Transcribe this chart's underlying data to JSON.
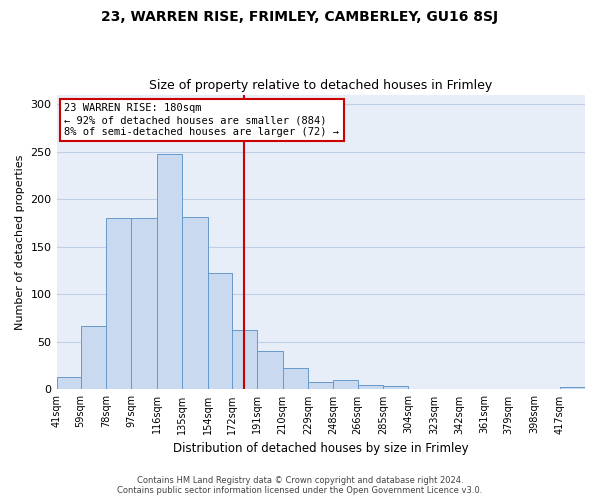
{
  "title1": "23, WARREN RISE, FRIMLEY, CAMBERLEY, GU16 8SJ",
  "title2": "Size of property relative to detached houses in Frimley",
  "xlabel": "Distribution of detached houses by size in Frimley",
  "ylabel": "Number of detached properties",
  "bar_labels": [
    "41sqm",
    "59sqm",
    "78sqm",
    "97sqm",
    "116sqm",
    "135sqm",
    "154sqm",
    "172sqm",
    "191sqm",
    "210sqm",
    "229sqm",
    "248sqm",
    "266sqm",
    "285sqm",
    "304sqm",
    "323sqm",
    "342sqm",
    "361sqm",
    "379sqm",
    "398sqm",
    "417sqm"
  ],
  "bar_values": [
    13,
    67,
    180,
    180,
    247,
    181,
    122,
    62,
    40,
    23,
    8,
    10,
    5,
    4,
    0,
    0,
    0,
    0,
    0,
    0,
    3
  ],
  "bar_color": "#c8d9f0",
  "bar_edge_color": "#6699cc",
  "ylim": [
    0,
    310
  ],
  "yticks": [
    0,
    50,
    100,
    150,
    200,
    250,
    300
  ],
  "grid_color": "#c0cfe8",
  "bg_color": "#e8eef8",
  "property_line_x": 181,
  "annotation_line_color": "#cc0000",
  "annotation_box_edge": "#cc0000",
  "annotation_text_line1": "23 WARREN RISE: 180sqm",
  "annotation_text_line2": "← 92% of detached houses are smaller (884)",
  "annotation_text_line3": "8% of semi-detached houses are larger (72) →",
  "footer1": "Contains HM Land Registry data © Crown copyright and database right 2024.",
  "footer2": "Contains public sector information licensed under the Open Government Licence v3.0.",
  "label_values": [
    41,
    59,
    78,
    97,
    116,
    135,
    154,
    172,
    191,
    210,
    229,
    248,
    266,
    285,
    304,
    323,
    342,
    361,
    379,
    398,
    417
  ]
}
